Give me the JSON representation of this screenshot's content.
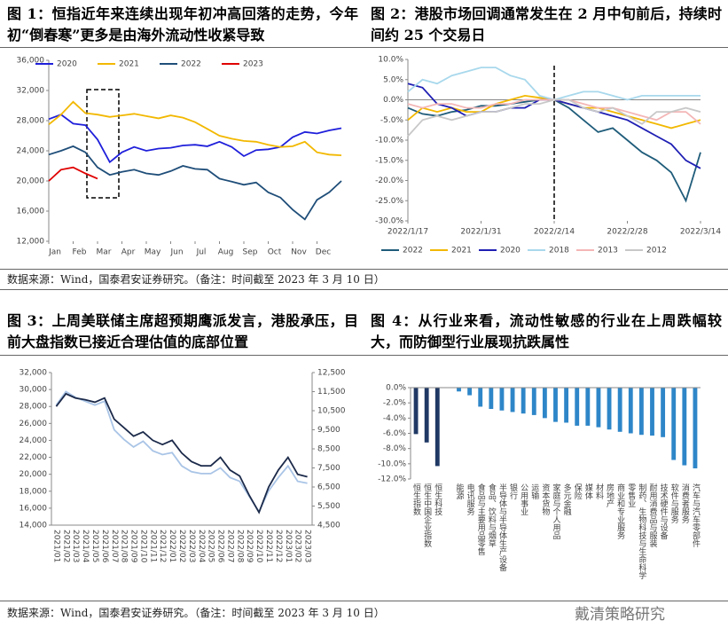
{
  "chart_data": [
    {
      "type": "line",
      "title": "图 1：恒指近年来连续出现年初冲高回落的走势，今年初“倒春寒”更多是由海外流动性收紧导致",
      "x": [
        0,
        0.5,
        1,
        1.5,
        2,
        2.5,
        3,
        3.5,
        4,
        4.5,
        5,
        5.5,
        6,
        6.5,
        7,
        7.5,
        8,
        8.5,
        9,
        9.5,
        10,
        10.5,
        11,
        11.5,
        12
      ],
      "xlim": [
        0,
        12
      ],
      "xticks": [
        {
          "value": 0,
          "label": "Jan"
        },
        {
          "value": 1,
          "label": "Feb"
        },
        {
          "value": 2,
          "label": "Mar"
        },
        {
          "value": 3,
          "label": "Apr"
        },
        {
          "value": 4,
          "label": "May"
        },
        {
          "value": 5,
          "label": "Jun"
        },
        {
          "value": 6,
          "label": "Jul"
        },
        {
          "value": 7,
          "label": "Aug"
        },
        {
          "value": 8,
          "label": "Sep"
        },
        {
          "value": 9,
          "label": "Oct"
        },
        {
          "value": 10,
          "label": "Nov"
        },
        {
          "value": 11,
          "label": "Dec"
        }
      ],
      "ylim": [
        12000,
        36000
      ],
      "yticks": [
        {
          "value": 12000,
          "label": "12,000"
        },
        {
          "value": 16000,
          "label": "16,000"
        },
        {
          "value": 20000,
          "label": "20,000"
        },
        {
          "value": 24000,
          "label": "24,000"
        },
        {
          "value": 28000,
          "label": "28,000"
        },
        {
          "value": 32000,
          "label": "32,000"
        },
        {
          "value": 36000,
          "label": "36,000"
        }
      ],
      "series": [
        {
          "name": "2020",
          "color": "#1f1fdb",
          "values": [
            28200,
            28800,
            27600,
            27400,
            25500,
            22500,
            23800,
            24500,
            24000,
            24300,
            24400,
            24700,
            24800,
            24600,
            25200,
            24500,
            23300,
            24100,
            24200,
            24500,
            25800,
            26500,
            26300,
            26700,
            27000
          ]
        },
        {
          "name": "2021",
          "color": "#f2b800",
          "values": [
            27500,
            28800,
            30500,
            29000,
            28800,
            28500,
            28700,
            28900,
            28600,
            28300,
            28700,
            28400,
            27800,
            26900,
            26000,
            25600,
            25300,
            25200,
            24800,
            24500,
            24600,
            25200,
            23800,
            23500,
            23400
          ]
        },
        {
          "name": "2022",
          "color": "#1f4e79",
          "values": [
            23500,
            24000,
            24600,
            23800,
            21800,
            20800,
            21200,
            21500,
            21000,
            20800,
            21300,
            22000,
            21600,
            21500,
            20300,
            19900,
            19500,
            19800,
            18500,
            17800,
            16200,
            14900,
            17500,
            18500,
            20000
          ]
        },
        {
          "name": "2023",
          "color": "#e00000",
          "values": [
            20000,
            21500,
            21800,
            21000,
            20300,
            null,
            null,
            null,
            null,
            null,
            null,
            null,
            null,
            null,
            null,
            null,
            null,
            null,
            null,
            null,
            null,
            null,
            null,
            null,
            null
          ]
        }
      ]
    },
    {
      "type": "line",
      "title": "图 2：港股市场回调通常发生在 2 月中旬前后，持续时间约 25 个交易日",
      "x": [
        0,
        2,
        4,
        6,
        8,
        10,
        12,
        14,
        16,
        18,
        20,
        22,
        24,
        26,
        28,
        30,
        32,
        34,
        36,
        38,
        40
      ],
      "xlim": [
        0,
        40
      ],
      "xticks": [
        {
          "value": 0,
          "label": "2022/1/17"
        },
        {
          "value": 10,
          "label": "2022/1/31"
        },
        {
          "value": 20,
          "label": "2022/2/14"
        },
        {
          "value": 30,
          "label": "2022/2/28"
        },
        {
          "value": 40,
          "label": "2022/3/14"
        }
      ],
      "ylim": [
        -30,
        10
      ],
      "yticks": [
        {
          "value": -30,
          "label": "-30.0%"
        },
        {
          "value": -25,
          "label": "-25.0%"
        },
        {
          "value": -20,
          "label": "-20.0%"
        },
        {
          "value": -15,
          "label": "-15.0%"
        },
        {
          "value": -10,
          "label": "-10.0%"
        },
        {
          "value": -5,
          "label": "-5.0%"
        },
        {
          "value": 0,
          "label": "0.0%"
        },
        {
          "value": 5,
          "label": "5.0%"
        },
        {
          "value": 10,
          "label": "10.0%"
        }
      ],
      "series": [
        {
          "name": "2022",
          "color": "#1f5c7a",
          "values": [
            -2,
            -3.5,
            -4,
            -3,
            -2.5,
            -1.5,
            -1.5,
            -1,
            -0.5,
            0,
            0,
            -2,
            -5,
            -8,
            -7,
            -10,
            -13,
            -15,
            -18,
            -25,
            -13
          ]
        },
        {
          "name": "2021",
          "color": "#f2b800",
          "values": [
            -5,
            -2,
            -3,
            -2,
            -3,
            -3,
            -1,
            0,
            1,
            0.5,
            0,
            -1,
            -2,
            -2,
            -3,
            -4,
            -5,
            -6,
            -7,
            -6,
            -5
          ]
        },
        {
          "name": "2020",
          "color": "#1f1fb4",
          "values": [
            4,
            3,
            -1,
            -2,
            -4,
            -3,
            -3,
            -2,
            -2,
            0,
            0,
            -1,
            -2,
            -3,
            -4,
            -5,
            -7,
            -9,
            -11,
            -15,
            -17
          ]
        },
        {
          "name": "2018",
          "color": "#a8d8ec",
          "values": [
            2,
            5,
            4,
            6,
            7,
            8,
            8,
            6,
            5,
            1,
            0,
            1,
            2,
            2,
            1,
            0,
            1,
            1,
            1,
            1,
            1
          ]
        },
        {
          "name": "2013",
          "color": "#f4b6b6",
          "values": [
            -1,
            -2,
            -1,
            -1,
            -2,
            -2,
            -1,
            -1,
            0,
            0,
            0,
            0,
            -1,
            -2,
            -2,
            -3,
            -4,
            -5,
            -3,
            -3,
            -6
          ]
        },
        {
          "name": "2012",
          "color": "#c8c8c8",
          "values": [
            -9,
            -5,
            -4,
            -5,
            -4,
            -3,
            -3,
            -2,
            -1,
            -1,
            0,
            0,
            -2,
            -3,
            -2,
            -4,
            -6,
            -3,
            -3,
            -2,
            -3
          ]
        }
      ]
    },
    {
      "type": "line",
      "title": "图 3：上周美联储主席超预期鹰派发言，港股承压，目前大盘指数已接近合理估值的底部位置",
      "categories": [
        "2021/01",
        "2021/02",
        "2021/03",
        "2021/04",
        "2021/05",
        "2021/06",
        "2021/07",
        "2021/08",
        "2021/09",
        "2021/10",
        "2021/11",
        "2021/12",
        "2022/01",
        "2022/02",
        "2022/03",
        "2022/04",
        "2022/05",
        "2022/06",
        "2022/07",
        "2022/08",
        "2022/09",
        "2022/10",
        "2022/11",
        "2022/12",
        "2023/01",
        "2023/02",
        "2023/03"
      ],
      "ylim": [
        14000,
        32000
      ],
      "yticks": [
        {
          "value": 14000,
          "label": "14,000"
        },
        {
          "value": 16000,
          "label": "16,000"
        },
        {
          "value": 18000,
          "label": "18,000"
        },
        {
          "value": 20000,
          "label": "20,000"
        },
        {
          "value": 22000,
          "label": "22,000"
        },
        {
          "value": 24000,
          "label": "24,000"
        },
        {
          "value": 26000,
          "label": "26,000"
        },
        {
          "value": 28000,
          "label": "28,000"
        },
        {
          "value": 30000,
          "label": "30,000"
        },
        {
          "value": 32000,
          "label": "32,000"
        }
      ],
      "y2lim": [
        4500,
        12500
      ],
      "y2ticks": [
        {
          "value": 4500,
          "label": "4,500"
        },
        {
          "value": 5500,
          "label": "5,500"
        },
        {
          "value": 6500,
          "label": "6,500"
        },
        {
          "value": 7500,
          "label": "7,500"
        },
        {
          "value": 8500,
          "label": "8,500"
        },
        {
          "value": 9500,
          "label": "9,500"
        },
        {
          "value": 10500,
          "label": "10,500"
        },
        {
          "value": 11500,
          "label": "11,500"
        },
        {
          "value": 12500,
          "label": "12,500"
        }
      ],
      "series": [
        {
          "color": "#a9c4e6",
          "axis": "y2",
          "values": [
            10800,
            11500,
            11200,
            11000,
            10800,
            11000,
            9500,
            9000,
            8600,
            8900,
            8400,
            8200,
            8300,
            7600,
            7300,
            7200,
            7200,
            7500,
            7000,
            6800,
            6000,
            5200,
            6300,
            7000,
            7600,
            6800,
            6700
          ]
        },
        {
          "color": "#1c2a4a",
          "values": [
            28000,
            29500,
            29000,
            28800,
            28500,
            29000,
            26500,
            25500,
            24500,
            25000,
            24000,
            23500,
            24000,
            22500,
            21500,
            21000,
            21000,
            22000,
            20500,
            19800,
            17500,
            15500,
            18500,
            20500,
            22000,
            20000,
            19700
          ]
        }
      ]
    },
    {
      "type": "bar",
      "title": "图 4：从行业来看，流动性敏感的行业在上周跌幅较大，而防御型行业展现抗跌属性",
      "categories": [
        "恒生指数",
        "恒生中国企业指数",
        "恒生科技",
        null,
        "能源",
        "电讯服务",
        "食品与主要用品零售",
        "食品、饮料与烟草",
        "半导体与半导体生产设备",
        "银行",
        "公用事业",
        "运输",
        "资本货物",
        "家庭与个人用品",
        "多元金融",
        "保险",
        "媒体",
        "材料",
        "房地产",
        "商业和专业服务",
        "零售业",
        "制药、生物科技与生命科学",
        "耐用消费品与服装",
        "技术硬件与设备",
        "软件与服务",
        "消费者服务",
        "汽车与汽车零部件"
      ],
      "values": [
        -6.1,
        -7.2,
        -10.3,
        null,
        -0.5,
        -1.0,
        -2.5,
        -2.8,
        -3.0,
        -3.2,
        -3.4,
        -3.6,
        -4.0,
        -4.5,
        -4.6,
        -5.0,
        -5.0,
        -5.2,
        -5.5,
        -5.8,
        -6.0,
        -6.2,
        -6.3,
        -6.5,
        -9.5,
        -10.2,
        -10.6
      ],
      "colors": [
        "#1f3864",
        "#1f3864",
        "#1f3864",
        null,
        "#2e86c8",
        "#2e86c8",
        "#2e86c8",
        "#2e86c8",
        "#2e86c8",
        "#2e86c8",
        "#2e86c8",
        "#2e86c8",
        "#2e86c8",
        "#2e86c8",
        "#2e86c8",
        "#2e86c8",
        "#2e86c8",
        "#2e86c8",
        "#2e86c8",
        "#2e86c8",
        "#2e86c8",
        "#2e86c8",
        "#2e86c8",
        "#2e86c8",
        "#2e86c8",
        "#2e86c8",
        "#2e86c8"
      ],
      "ylim": [
        -12,
        0
      ],
      "yticks": [
        {
          "value": 0,
          "label": "0.0%"
        },
        {
          "value": -2,
          "label": "-2.0%"
        },
        {
          "value": -4,
          "label": "-4.0%"
        },
        {
          "value": -6,
          "label": "-6.0%"
        },
        {
          "value": -8,
          "label": "-8.0%"
        },
        {
          "value": -10,
          "label": "-10.0%"
        },
        {
          "value": -12,
          "label": "-12.0%"
        }
      ]
    }
  ],
  "sources": [
    "数据来源：Wind，国泰君安证券研究。（备注：时间截至 2023 年 3 月 10 日）",
    "数据来源：Wind，国泰君安证券研究。（备注：时间截至 2023 年 3 月 10 日）"
  ],
  "watermark": "戴清策略研究"
}
